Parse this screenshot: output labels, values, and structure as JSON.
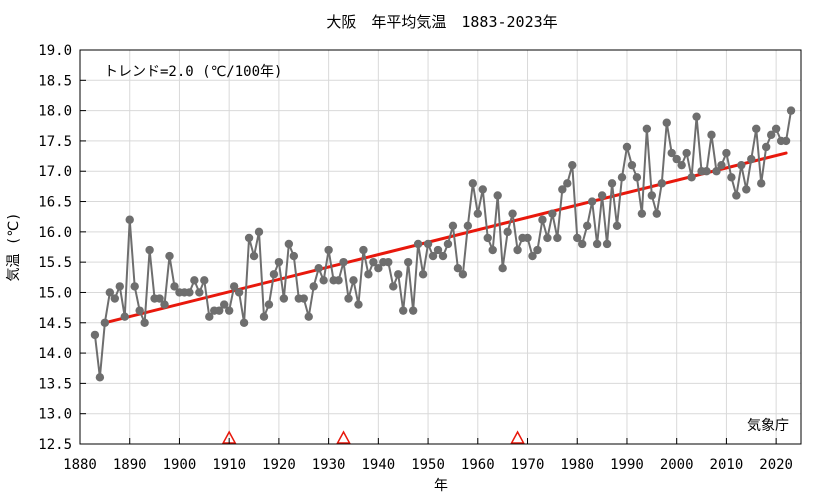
{
  "chart_data": {
    "type": "line",
    "title": "大阪　年平均気温　1883-2023年",
    "xlabel": "年",
    "ylabel": "気温 (℃)",
    "trend_label": "トレンド=2.0 (℃/100年)",
    "source_label": "気象庁",
    "xlim": [
      1880,
      2025
    ],
    "ylim": [
      12.5,
      19.0
    ],
    "x_ticks": [
      1880,
      1890,
      1900,
      1910,
      1920,
      1930,
      1940,
      1950,
      1960,
      1970,
      1980,
      1990,
      2000,
      2010,
      2020
    ],
    "y_ticks": [
      "12.5",
      "13.0",
      "13.5",
      "14.0",
      "14.5",
      "15.0",
      "15.5",
      "16.0",
      "16.5",
      "17.0",
      "17.5",
      "18.0",
      "18.5",
      "19.0"
    ],
    "grid": true,
    "colors": {
      "series": "#6e6e6e",
      "trend": "#e8180c",
      "marker": "#e8180c",
      "axis": "#000000"
    },
    "series": [
      {
        "x_start": 1883,
        "values": [
          14.3,
          13.6,
          14.5,
          15.0,
          14.9,
          15.1,
          14.6,
          16.2,
          15.1,
          14.7,
          14.5,
          15.7,
          14.9,
          14.9,
          14.8,
          15.6,
          15.1,
          15.0,
          15.0,
          15.0,
          15.2,
          15.0,
          15.2,
          14.6,
          14.7,
          14.7,
          14.8,
          14.7,
          15.1,
          15.0,
          14.5,
          15.9,
          15.6,
          16.0,
          14.6,
          14.8,
          15.3,
          15.5,
          14.9,
          15.8,
          15.6,
          14.9,
          14.9,
          14.6,
          15.1,
          15.4,
          15.2,
          15.7,
          15.2,
          15.2,
          15.5,
          14.9,
          15.2,
          14.8,
          15.7,
          15.3,
          15.5,
          15.4,
          15.5,
          15.5,
          15.1,
          15.3,
          14.7,
          15.5,
          14.7,
          15.8,
          15.3,
          15.8,
          15.6,
          15.7,
          15.6,
          15.8,
          16.1,
          15.4,
          15.3,
          16.1,
          16.8,
          16.3,
          16.7,
          15.9,
          15.7,
          16.6,
          15.4,
          16.0,
          16.3,
          15.7,
          15.9,
          15.9,
          15.6,
          15.7,
          16.2,
          15.9,
          16.3,
          15.9,
          16.7,
          16.8,
          17.1,
          15.9,
          15.8,
          16.1,
          16.5,
          15.8,
          16.6,
          15.8,
          16.8,
          16.1,
          16.9,
          17.4,
          17.1,
          16.9,
          16.3,
          17.7,
          16.6,
          16.3,
          16.8,
          17.8,
          17.3,
          17.2,
          17.1,
          17.3,
          16.9,
          17.9,
          17.0,
          17.0,
          17.6,
          17.0,
          17.1,
          17.3,
          16.9,
          16.6,
          17.1,
          16.7,
          17.2,
          17.7,
          16.8,
          17.4,
          17.6,
          17.7,
          17.5,
          17.5,
          18.0
        ]
      }
    ],
    "trend": {
      "x": [
        1885,
        2022
      ],
      "y": [
        14.5,
        17.3
      ]
    },
    "station_change_years": [
      1910,
      1933,
      1968
    ]
  }
}
